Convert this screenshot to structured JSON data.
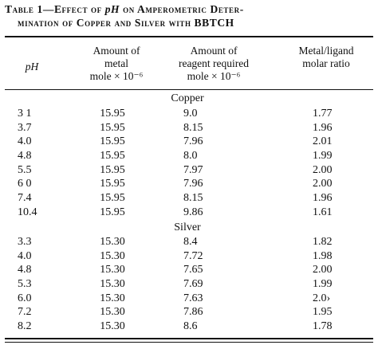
{
  "title": {
    "line1_prefix": "Table 1—Effect of ",
    "ph": "pH",
    "line1_suffix": " on Amperometric Deter-",
    "line2": "mination of Copper and Silver with BBTCH"
  },
  "columns": {
    "ph": "pH",
    "metal": [
      "Amount of",
      "metal",
      "mole × 10⁻⁶"
    ],
    "reagent": [
      "Amount of",
      "reagent required",
      "mole × 10⁻⁶"
    ],
    "ratio": [
      "Metal/ligand",
      "molar ratio"
    ]
  },
  "sections": [
    {
      "name": "Copper",
      "rows": [
        {
          "ph": "3 1",
          "metal": "15.95",
          "reagent": "9.0",
          "ratio": "1.77"
        },
        {
          "ph": "3.7",
          "metal": "15.95",
          "reagent": "8.15",
          "ratio": "1.96"
        },
        {
          "ph": "4.0",
          "metal": "15.95",
          "reagent": "7.96",
          "ratio": "2.01"
        },
        {
          "ph": "4.8",
          "metal": "15.95",
          "reagent": "8.0",
          "ratio": "1.99"
        },
        {
          "ph": "5.5",
          "metal": "15.95",
          "reagent": "7.97",
          "ratio": "2.00"
        },
        {
          "ph": "6 0",
          "metal": "15.95",
          "reagent": "7.96",
          "ratio": "2.00"
        },
        {
          "ph": "7.4",
          "metal": "15.95",
          "reagent": "8.15",
          "ratio": "1.96"
        },
        {
          "ph": "10.4",
          "metal": "15.95",
          "reagent": "9.86",
          "ratio": "1.61"
        }
      ]
    },
    {
      "name": "Silver",
      "rows": [
        {
          "ph": "3.3",
          "metal": "15.30",
          "reagent": "8.4",
          "ratio": "1.82"
        },
        {
          "ph": "4.0",
          "metal": "15.30",
          "reagent": "7.72",
          "ratio": "1.98"
        },
        {
          "ph": "4.8",
          "metal": "15.30",
          "reagent": "7.65",
          "ratio": "2.00"
        },
        {
          "ph": "5.3",
          "metal": "15.30",
          "reagent": "7.69",
          "ratio": "1.99"
        },
        {
          "ph": "6.0",
          "metal": "15.30",
          "reagent": "7.63",
          "ratio": "2.0›"
        },
        {
          "ph": "7.2",
          "metal": "15.30",
          "reagent": "7.86",
          "ratio": "1.95"
        },
        {
          "ph": "8.2",
          "metal": "15.30",
          "reagent": "8.6",
          "ratio": "1.78"
        }
      ]
    }
  ]
}
